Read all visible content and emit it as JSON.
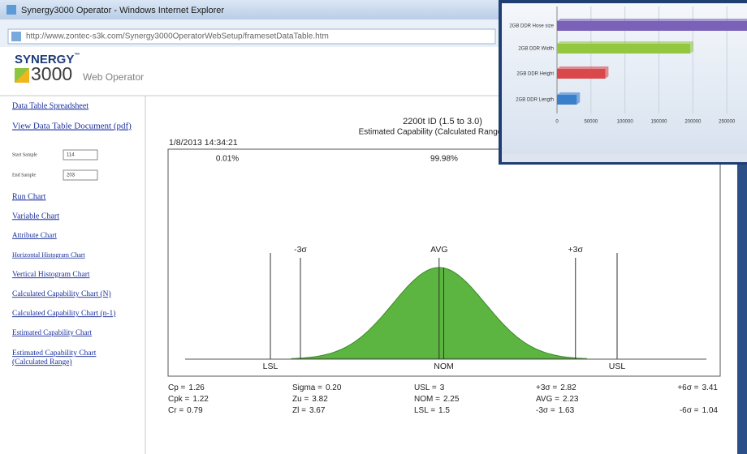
{
  "window": {
    "title": "Synergy3000 Operator - Windows Internet Explorer",
    "address": "http://www.zontec-s3k.com/Synergy3000OperatorWebSetup/framesetDataTable.htm"
  },
  "logo": {
    "brand": "SYNERGY",
    "trademark": "™",
    "number": "3000",
    "product": "Web Operator"
  },
  "sidebar": {
    "top_links": [
      "Data Table Spreadsheet",
      "View Data Table Document (pdf)"
    ],
    "fields": [
      {
        "label": "Start Sample",
        "value": "114"
      },
      {
        "label": "End Sample",
        "value": "203"
      }
    ],
    "links": [
      [
        "Run Chart"
      ],
      [
        "Variable Chart"
      ],
      [
        "Attribute Chart"
      ],
      [
        "Horizontal Histogram Chart"
      ],
      [
        "Vertical Histogram Chart"
      ],
      [
        "Calculated Capability Chart (N)"
      ],
      [
        "Calculated Capability Chart (n-1)"
      ],
      [
        "Estimated Capability Chart"
      ],
      [
        "Estimated Capability Chart",
        "(Calculated Range)"
      ]
    ]
  },
  "capability_chart": {
    "title": "2200t ID (1.5 to 3.0)",
    "subtitle": "Estimated Capability (Calculated Range) (Sam",
    "timestamp": "1/8/2013 14:34:21",
    "percent_labels": [
      "0.01%",
      "99.98%"
    ],
    "top_line_labels": [
      "-3σ",
      "AVG",
      "+3σ"
    ],
    "bottom_line_labels": [
      "LSL",
      "NOM",
      "USL"
    ],
    "color": "#5cb540",
    "stats": [
      [
        {
          "name": "Cp =",
          "value": 1.26
        },
        {
          "name": "Sigma =",
          "value": 0.2,
          "value_label": "0.20"
        },
        {
          "name": "USL =",
          "value": 3
        },
        {
          "name": "+3σ =",
          "value": 2.82
        },
        {
          "name": "+6σ =",
          "value": 3.41
        }
      ],
      [
        {
          "name": "Cpk =",
          "value": 1.22
        },
        {
          "name": "Zu =",
          "value": 3.82
        },
        {
          "name": "NOM =",
          "value": 2.25
        },
        {
          "name": "AVG =",
          "value": 2.23
        }
      ],
      [
        {
          "name": "Cr =",
          "value": 0.79
        },
        {
          "name": "Zl =",
          "value": 3.67
        },
        {
          "name": "LSL =",
          "value": 1.5
        },
        {
          "name": "-3σ =",
          "value": 1.63
        },
        {
          "name": "-6σ =",
          "value": 1.04
        }
      ]
    ]
  },
  "overlay_chart": {
    "type": "bar",
    "orientation": "horizontal",
    "categories": [
      "2GB DDR Hose size",
      "2GB DDR Width",
      "2GB DDR Height",
      "2GB DDR Length"
    ],
    "values": [
      300000,
      196000,
      71000,
      29000
    ],
    "colors": [
      "#7b62b8",
      "#93c73f",
      "#d9484a",
      "#3a7fcc"
    ],
    "xlim": [
      0,
      300000
    ],
    "xticks": [
      0,
      50000,
      100000,
      150000,
      200000,
      250000
    ],
    "grid": true
  }
}
